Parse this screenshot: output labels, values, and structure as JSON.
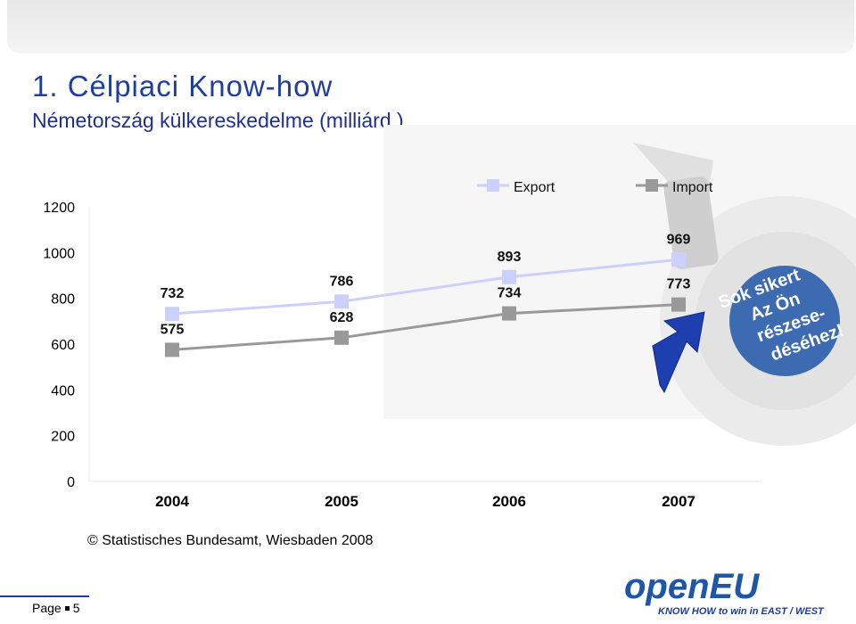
{
  "header": {
    "title": "1. Célpiaci Know-how",
    "subtitle": "Németország külkereskedelme (milliárd )"
  },
  "chart_data": {
    "type": "line",
    "categories": [
      "2004",
      "2005",
      "2006",
      "2007"
    ],
    "series": [
      {
        "name": "Export",
        "values": [
          732,
          786,
          893,
          969
        ],
        "color": "#ccd0ff"
      },
      {
        "name": "Import",
        "values": [
          575,
          628,
          734,
          773
        ],
        "color": "#999999"
      }
    ],
    "ylim": [
      0,
      1200
    ],
    "yticks": [
      "0",
      "200",
      "400",
      "600",
      "800",
      "1000",
      "1200"
    ],
    "grid": false,
    "legend": "top-right"
  },
  "decoration": {
    "dartboard_text": [
      "Sok sikert",
      "Az Ön",
      "részese-",
      "déséhez!"
    ],
    "icons": [
      "target-icon",
      "arrow-icon"
    ]
  },
  "source": "© Statistisches Bundesamt, Wiesbaden 2008",
  "footer": {
    "page_label": "Page",
    "page_number": "5"
  },
  "logo": {
    "name": "openEU",
    "tagline": "KNOW HOW to win in EAST / WEST"
  },
  "colors": {
    "title": "#1f3f9f",
    "accent": "#1e56a8"
  }
}
